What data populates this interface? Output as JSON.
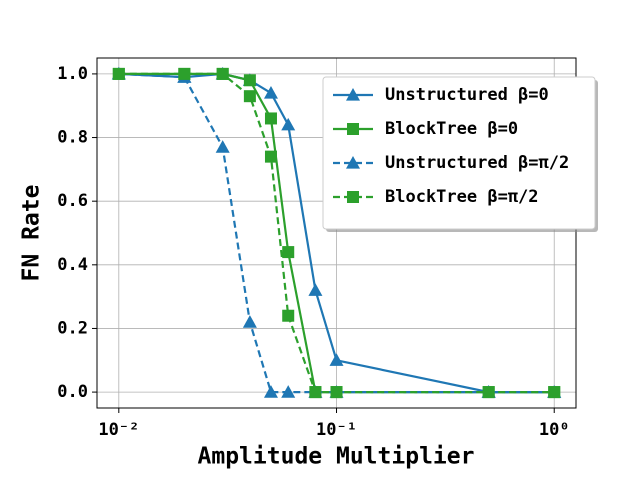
{
  "chart_data": {
    "type": "line",
    "x_label": "Amplitude Multiplier",
    "y_label": "FN Rate",
    "x_scale": "log",
    "grid": true,
    "legend_position": "upper right",
    "x": [
      0.01,
      0.02,
      0.03,
      0.04,
      0.05,
      0.06,
      0.08,
      0.1,
      0.5,
      1
    ],
    "xlim": [
      0.00794,
      1.259
    ],
    "ylim": [
      -0.05,
      1.05
    ],
    "xticks": [
      {
        "value": 0.01,
        "label": "10⁻²"
      },
      {
        "value": 0.1,
        "label": "10⁻¹"
      },
      {
        "value": 1,
        "label": "10⁰"
      }
    ],
    "yticks": [
      {
        "value": 0,
        "label": "0.0"
      },
      0.2,
      0.4,
      0.6,
      0.8,
      {
        "value": 1,
        "label": "1.0"
      }
    ],
    "series": [
      {
        "name": "Unstructured β=0",
        "color": "#1f77b4",
        "linestyle": "solid",
        "marker": "triangle",
        "values": [
          1.0,
          0.99,
          1.0,
          0.98,
          0.94,
          0.84,
          0.32,
          0.1,
          0.0,
          0.0
        ]
      },
      {
        "name": "BlockTree β=0",
        "color": "#2ca02c",
        "linestyle": "solid",
        "marker": "square",
        "values": [
          1.0,
          1.0,
          1.0,
          0.98,
          0.86,
          0.44,
          0.0,
          0.0,
          0.0,
          0.0
        ]
      },
      {
        "name": "Unstructured β=π/2",
        "color": "#1f77b4",
        "linestyle": "dashed",
        "marker": "triangle",
        "values": [
          1.0,
          0.99,
          0.77,
          0.22,
          0.0,
          0.0,
          0.0,
          0.0,
          0.0,
          0.0
        ]
      },
      {
        "name": "BlockTree β=π/2",
        "color": "#2ca02c",
        "linestyle": "dashed",
        "marker": "square",
        "values": [
          1.0,
          1.0,
          1.0,
          0.93,
          0.74,
          0.24,
          0.0,
          0.0,
          0.0,
          0.0
        ]
      }
    ]
  }
}
